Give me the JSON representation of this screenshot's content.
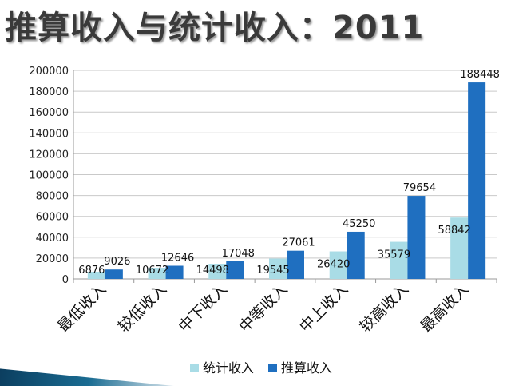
{
  "title": "推算收入与统计收入：2011",
  "colors": {
    "stat": "#a9dce6",
    "est": "#1f6fc0",
    "grid": "#c9c9c9"
  },
  "chart_data": {
    "type": "bar",
    "title": "推算收入与统计收入：2011",
    "categories": [
      "最低收入",
      "较低收入",
      "中下收入",
      "中等收入",
      "中上收入",
      "较高收入",
      "最高收入"
    ],
    "series": [
      {
        "name": "统计收入",
        "values": [
          6876,
          10672,
          14498,
          19545,
          26420,
          35579,
          58842
        ]
      },
      {
        "name": "推算收入",
        "values": [
          9026,
          12646,
          17048,
          27061,
          45250,
          79654,
          188448
        ]
      }
    ],
    "ylim": [
      0,
      200000
    ],
    "yticks": [
      0,
      20000,
      40000,
      60000,
      80000,
      100000,
      120000,
      140000,
      160000,
      180000,
      200000
    ],
    "grid": true,
    "legend": "bottom"
  }
}
